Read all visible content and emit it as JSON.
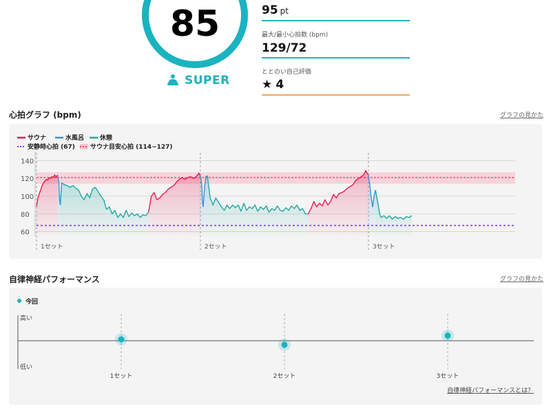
{
  "score": {
    "value": "85",
    "label": "SUPER",
    "ring_color": "#1bb3c0"
  },
  "stats": {
    "points": {
      "value": "95",
      "unit": "pt"
    },
    "heart_rate": {
      "label": "最大/最小心拍数 (bpm)",
      "value": "129/72"
    },
    "self_eval": {
      "label": "ととのい自己評価",
      "value": "4"
    }
  },
  "hr_section": {
    "title": "心拍グラフ (bpm)",
    "link": "グラフの見かた",
    "legend": {
      "sauna": "サウナ",
      "water": "水風呂",
      "rest": "休憩",
      "resting_hr": "安静時心拍 (67)",
      "target": "サウナ目安心拍 (114~127)"
    },
    "colors": {
      "sauna": "#e8194f",
      "water": "#3a8fd6",
      "rest": "#20a9a3",
      "resting": "#7a3cf0",
      "target": "#f6c6d0"
    },
    "y_ticks": [
      "140",
      "120",
      "100",
      "80",
      "60"
    ],
    "set_labels": [
      "1セット",
      "2セット",
      "3セット"
    ]
  },
  "chart_data": {
    "type": "line",
    "ylim": [
      55,
      145
    ],
    "y_ticks": [
      140,
      120,
      100,
      80,
      60
    ],
    "resting_hr": 67,
    "target_range": [
      114,
      127
    ],
    "x_domain": [
      0,
      100
    ],
    "set_starts": [
      5.5,
      57.5,
      103.5
    ],
    "segments": [
      {
        "kind": "sauna",
        "points": [
          [
            0,
            88
          ],
          [
            1,
            98
          ],
          [
            2,
            103
          ],
          [
            3,
            107
          ],
          [
            4,
            112
          ],
          [
            5,
            115
          ],
          [
            6,
            117
          ],
          [
            7,
            119
          ],
          [
            8,
            118
          ],
          [
            9,
            121
          ],
          [
            10,
            120
          ],
          [
            11,
            122
          ],
          [
            12,
            121
          ],
          [
            13,
            124
          ],
          [
            14,
            121
          ],
          [
            15,
            124
          ]
        ]
      },
      {
        "kind": "water",
        "points": [
          [
            15,
            124
          ],
          [
            16,
            115
          ],
          [
            16.5,
            95
          ],
          [
            17,
            90
          ]
        ]
      },
      {
        "kind": "rest",
        "points": [
          [
            17,
            90
          ],
          [
            18,
            115
          ],
          [
            20,
            113
          ],
          [
            22,
            112
          ],
          [
            24,
            110
          ],
          [
            26,
            112
          ],
          [
            28,
            109
          ],
          [
            30,
            107
          ],
          [
            32,
            100
          ],
          [
            34,
            96
          ],
          [
            36,
            103
          ],
          [
            38,
            98
          ],
          [
            40,
            108
          ],
          [
            42,
            110
          ],
          [
            44,
            105
          ],
          [
            46,
            100
          ],
          [
            48,
            96
          ],
          [
            50,
            85
          ],
          [
            52,
            88
          ],
          [
            54,
            80
          ],
          [
            56,
            84
          ],
          [
            58,
            76
          ],
          [
            60,
            80
          ],
          [
            62,
            76
          ],
          [
            64,
            84
          ],
          [
            66,
            77
          ],
          [
            68,
            81
          ],
          [
            70,
            78
          ],
          [
            72,
            80
          ],
          [
            74,
            76
          ],
          [
            76,
            79
          ],
          [
            78,
            78
          ],
          [
            80,
            82
          ]
        ]
      },
      {
        "kind": "sauna",
        "points": [
          [
            80,
            82
          ],
          [
            82,
            100
          ],
          [
            84,
            104
          ],
          [
            86,
            96
          ],
          [
            88,
            98
          ],
          [
            90,
            102
          ],
          [
            92,
            104
          ],
          [
            94,
            108
          ],
          [
            96,
            110
          ],
          [
            98,
            112
          ],
          [
            100,
            116
          ],
          [
            102,
            119
          ],
          [
            104,
            121
          ],
          [
            106,
            119
          ],
          [
            108,
            121
          ],
          [
            110,
            122
          ],
          [
            112,
            120
          ],
          [
            114,
            122
          ],
          [
            116,
            126
          ],
          [
            117,
            123
          ]
        ]
      },
      {
        "kind": "water",
        "points": [
          [
            117,
            123
          ],
          [
            118,
            112
          ],
          [
            118.5,
            94
          ],
          [
            119,
            88
          ],
          [
            120,
            110
          ],
          [
            121,
            122
          ],
          [
            122,
            123
          ]
        ]
      },
      {
        "kind": "rest",
        "points": [
          [
            122,
            123
          ],
          [
            124,
            98
          ],
          [
            126,
            90
          ],
          [
            128,
            98
          ],
          [
            130,
            93
          ],
          [
            132,
            88
          ],
          [
            134,
            84
          ],
          [
            136,
            90
          ],
          [
            138,
            86
          ],
          [
            140,
            90
          ],
          [
            142,
            87
          ],
          [
            144,
            90
          ],
          [
            146,
            83
          ],
          [
            148,
            92
          ],
          [
            150,
            84
          ],
          [
            152,
            88
          ],
          [
            154,
            86
          ],
          [
            156,
            90
          ],
          [
            158,
            83
          ],
          [
            160,
            88
          ],
          [
            162,
            85
          ],
          [
            164,
            89
          ],
          [
            166,
            82
          ],
          [
            168,
            86
          ],
          [
            170,
            84
          ],
          [
            172,
            89
          ],
          [
            174,
            84
          ],
          [
            176,
            83
          ],
          [
            178,
            87
          ],
          [
            180,
            84
          ],
          [
            182,
            89
          ],
          [
            184,
            86
          ],
          [
            186,
            90
          ],
          [
            188,
            84
          ],
          [
            190,
            86
          ],
          [
            192,
            80
          ],
          [
            194,
            80
          ]
        ]
      },
      {
        "kind": "sauna",
        "points": [
          [
            194,
            80
          ],
          [
            196,
            86
          ],
          [
            198,
            94
          ],
          [
            200,
            88
          ],
          [
            202,
            92
          ],
          [
            204,
            89
          ],
          [
            206,
            96
          ],
          [
            208,
            90
          ],
          [
            210,
            94
          ],
          [
            212,
            102
          ],
          [
            214,
            98
          ],
          [
            216,
            103
          ],
          [
            218,
            104
          ],
          [
            220,
            106
          ],
          [
            222,
            109
          ],
          [
            224,
            111
          ],
          [
            226,
            113
          ],
          [
            228,
            118
          ],
          [
            230,
            120
          ],
          [
            232,
            122
          ],
          [
            234,
            125
          ],
          [
            235,
            129
          ],
          [
            236,
            126
          ],
          [
            237,
            124
          ]
        ]
      },
      {
        "kind": "water",
        "points": [
          [
            237,
            124
          ],
          [
            238,
            112
          ],
          [
            239,
            98
          ],
          [
            240,
            88
          ],
          [
            241,
            100
          ],
          [
            242,
            107
          ]
        ]
      },
      {
        "kind": "rest",
        "points": [
          [
            242,
            107
          ],
          [
            244,
            90
          ],
          [
            245,
            80
          ],
          [
            246,
            76
          ],
          [
            248,
            78
          ],
          [
            250,
            75
          ],
          [
            252,
            78
          ],
          [
            254,
            74
          ],
          [
            256,
            77
          ],
          [
            258,
            75
          ],
          [
            260,
            76
          ],
          [
            262,
            74
          ],
          [
            264,
            77
          ],
          [
            266,
            76
          ],
          [
            268,
            78
          ]
        ]
      }
    ]
  },
  "anp_section": {
    "title": "自律神経パフォーマンス",
    "link": "グラフの見かた",
    "legend_now": "今回",
    "high": "高い",
    "low": "低い",
    "sets": [
      "1セット",
      "2セット",
      "3セット"
    ],
    "levels": [
      0.55,
      0.45,
      0.62
    ],
    "footer_link": "自律神経パフォーマンスとは？"
  }
}
